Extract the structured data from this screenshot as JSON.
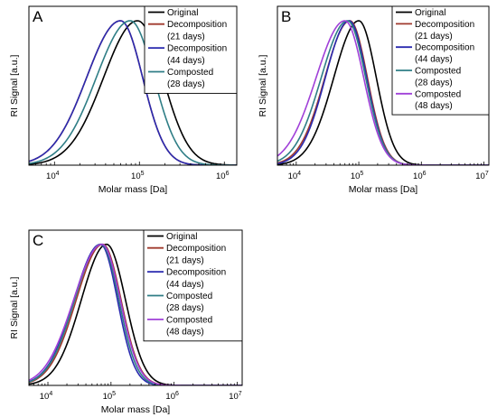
{
  "colors": {
    "original": "#000000",
    "decomp21": "#a03a2e",
    "decomp44": "#2a2aaf",
    "comp28": "#2f7e86",
    "comp48": "#a040d8"
  },
  "chart_data": [
    {
      "type": "line",
      "panel_label": "A",
      "xlabel": "Molar mass [Da]",
      "ylabel": "RI Signal [a.u.]",
      "x_scale": "log",
      "xlim": [
        5000,
        1400000
      ],
      "ylim": [
        0,
        1.1
      ],
      "x_ticks": [
        {
          "value": 10000,
          "base": "10",
          "exp": "4"
        },
        {
          "value": 100000,
          "base": "10",
          "exp": "5"
        },
        {
          "value": 1000000,
          "base": "10",
          "exp": "6"
        }
      ],
      "legend_position": "top-right",
      "series": [
        {
          "key": "original",
          "label_lines": [
            "Original"
          ],
          "peak": 95000,
          "sl": 0.4,
          "sr": 0.3
        },
        {
          "key": "decomp21",
          "label_lines": [
            "Decomposition",
            "(21 days)"
          ],
          "peak": 60000,
          "sl": 0.4,
          "sr": 0.26
        },
        {
          "key": "decomp44",
          "label_lines": [
            "Decomposition",
            "(44 days)"
          ],
          "peak": 60000,
          "sl": 0.4,
          "sr": 0.26
        },
        {
          "key": "comp28",
          "label_lines": [
            "Composted",
            "(28 days)"
          ],
          "peak": 78000,
          "sl": 0.4,
          "sr": 0.28
        }
      ]
    },
    {
      "type": "line",
      "panel_label": "B",
      "xlabel": "Molar mass [Da]",
      "ylabel": "RI Signal [a.u.]",
      "x_scale": "log",
      "xlim": [
        5000,
        12000000
      ],
      "ylim": [
        0,
        1.1
      ],
      "x_ticks": [
        {
          "value": 10000,
          "base": "10",
          "exp": "4"
        },
        {
          "value": 100000,
          "base": "10",
          "exp": "5"
        },
        {
          "value": 1000000,
          "base": "10",
          "exp": "6"
        },
        {
          "value": 10000000,
          "base": "10",
          "exp": "7"
        }
      ],
      "legend_position": "top-right",
      "series": [
        {
          "key": "original",
          "label_lines": [
            "Original"
          ],
          "peak": 100000,
          "sl": 0.4,
          "sr": 0.28
        },
        {
          "key": "decomp21",
          "label_lines": [
            "Decomposition",
            "(21 days)"
          ],
          "peak": 72000,
          "sl": 0.4,
          "sr": 0.28
        },
        {
          "key": "decomp44",
          "label_lines": [
            "Decomposition",
            "(44 days)"
          ],
          "peak": 70000,
          "sl": 0.38,
          "sr": 0.28
        },
        {
          "key": "comp28",
          "label_lines": [
            "Composted",
            "(28 days)"
          ],
          "peak": 66000,
          "sl": 0.42,
          "sr": 0.29
        },
        {
          "key": "comp48",
          "label_lines": [
            "Composted",
            "(48 days)"
          ],
          "peak": 60000,
          "sl": 0.46,
          "sr": 0.3
        }
      ]
    },
    {
      "type": "line",
      "panel_label": "C",
      "xlabel": "Molar mass [Da]",
      "ylabel": "RI Signal [a.u.]",
      "x_scale": "log",
      "xlim": [
        5000,
        12000000
      ],
      "ylim": [
        0,
        1.1
      ],
      "x_ticks": [
        {
          "value": 10000,
          "base": "10",
          "exp": "4"
        },
        {
          "value": 100000,
          "base": "10",
          "exp": "5"
        },
        {
          "value": 1000000,
          "base": "10",
          "exp": "6"
        },
        {
          "value": 10000000,
          "base": "10",
          "exp": "7"
        }
      ],
      "legend_position": "top-right",
      "series": [
        {
          "key": "original",
          "label_lines": [
            "Original"
          ],
          "peak": 85000,
          "sl": 0.4,
          "sr": 0.3
        },
        {
          "key": "decomp21",
          "label_lines": [
            "Decomposition",
            "(21 days)"
          ],
          "peak": 74000,
          "sl": 0.42,
          "sr": 0.29
        },
        {
          "key": "decomp44",
          "label_lines": [
            "Decomposition",
            "(44 days)"
          ],
          "peak": 68000,
          "sl": 0.42,
          "sr": 0.27
        },
        {
          "key": "comp28",
          "label_lines": [
            "Composted",
            "(28 days)"
          ],
          "peak": 70000,
          "sl": 0.42,
          "sr": 0.28
        },
        {
          "key": "comp48",
          "label_lines": [
            "Composted",
            "(48 days)"
          ],
          "peak": 72000,
          "sl": 0.45,
          "sr": 0.29
        }
      ]
    }
  ]
}
